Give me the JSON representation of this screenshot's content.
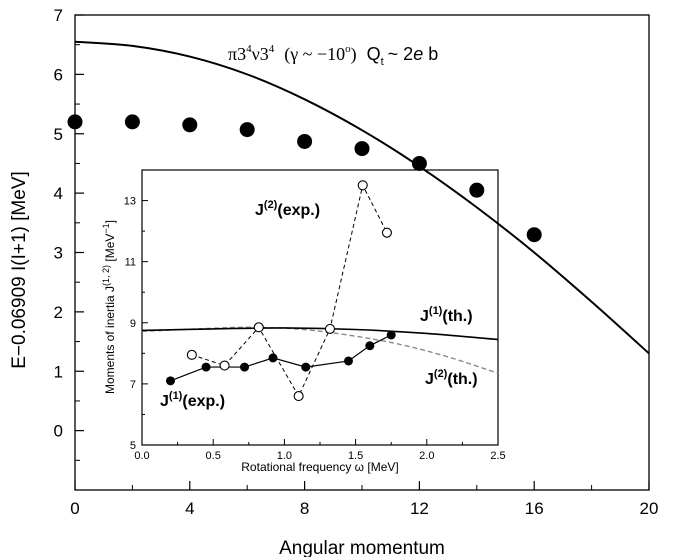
{
  "chart_data": [
    {
      "type": "scatter",
      "xlabel": "Angular  momentum",
      "ylabel": "E−0.06909 I(I+1) [MeV]",
      "xlim": [
        0,
        20
      ],
      "ylim": [
        -1,
        7
      ],
      "xticks": [
        "0",
        "4",
        "8",
        "12",
        "16",
        "20"
      ],
      "yticks": [
        "0",
        "1",
        "2",
        "3",
        "4",
        "5",
        "6",
        "7"
      ],
      "annotation": {
        "pi": "π3",
        "pi_sup": "4",
        "nu": "ν3",
        "nu_sup": "4",
        "gamma": "(γ ~ −10",
        "gamma_sup": "o",
        "gamma_close": ")",
        "q": "Q",
        "q_sub": "t",
        "q_val": "~ 2",
        "q_e": "e",
        "q_b": " b"
      },
      "series": [
        {
          "kind": "points",
          "x": [
            0,
            2,
            4,
            6,
            8,
            10,
            12,
            14,
            16
          ],
          "y": [
            5.2,
            5.2,
            5.15,
            5.07,
            4.87,
            4.75,
            4.5,
            4.05,
            3.3
          ]
        },
        {
          "kind": "curve",
          "x": [
            0,
            2,
            4,
            6,
            8,
            10,
            12,
            14,
            16,
            18,
            20
          ],
          "y": [
            6.55,
            6.48,
            6.3,
            6.0,
            5.58,
            5.06,
            4.45,
            3.76,
            3.0,
            2.17,
            1.3
          ]
        }
      ]
    },
    {
      "type": "line",
      "xlabel": "Rotational  frequency  ω [MeV]",
      "ylabel": "Moments  of  inertia J",
      "ylabel_sup": "(1, 2)",
      "ylabel_unit": " [MeV",
      "ylabel_unit_sup": "−1",
      "ylabel_unit_close": "]",
      "xlim": [
        0,
        2.5
      ],
      "ylim": [
        5,
        14
      ],
      "xticks": [
        "0.0",
        "0.5",
        "1.0",
        "1.5",
        "2.0",
        "2.5"
      ],
      "yticks": [
        "5",
        "7",
        "9",
        "11",
        "13"
      ],
      "labels": {
        "j2_exp": "J",
        "j2_exp_sup": "(2)",
        "j2_exp_rest": "(exp.)",
        "j1_th": "J",
        "j1_th_sup": "(1)",
        "j1_th_rest": "(th.)",
        "j2_th": "J",
        "j2_th_sup": "(2)",
        "j2_th_rest": "(th.)",
        "j1_exp": "J",
        "j1_exp_sup": "(1)",
        "j1_exp_rest": "(exp.)"
      },
      "series": [
        {
          "name": "J(1)(exp.)",
          "x": [
            0.2,
            0.45,
            0.72,
            0.92,
            1.15,
            1.45,
            1.6,
            1.75
          ],
          "y": [
            7.1,
            7.55,
            7.55,
            7.85,
            7.55,
            7.75,
            8.25,
            8.6
          ]
        },
        {
          "name": "J(2)(exp.)",
          "x": [
            0.35,
            0.58,
            0.82,
            1.1,
            1.32,
            1.55,
            1.72
          ],
          "y": [
            7.95,
            7.6,
            8.85,
            6.6,
            8.8,
            13.5,
            11.95
          ]
        },
        {
          "name": "J(1)(th.)",
          "x": [
            0,
            0.5,
            1.0,
            1.5,
            2.0,
            2.5
          ],
          "y": [
            8.75,
            8.8,
            8.83,
            8.78,
            8.65,
            8.45
          ]
        },
        {
          "name": "J(2)(th.)",
          "x": [
            0,
            0.5,
            0.8,
            1.2,
            1.7,
            2.1,
            2.5
          ],
          "y": [
            8.72,
            8.82,
            8.85,
            8.75,
            8.4,
            7.95,
            7.35
          ]
        }
      ]
    }
  ]
}
